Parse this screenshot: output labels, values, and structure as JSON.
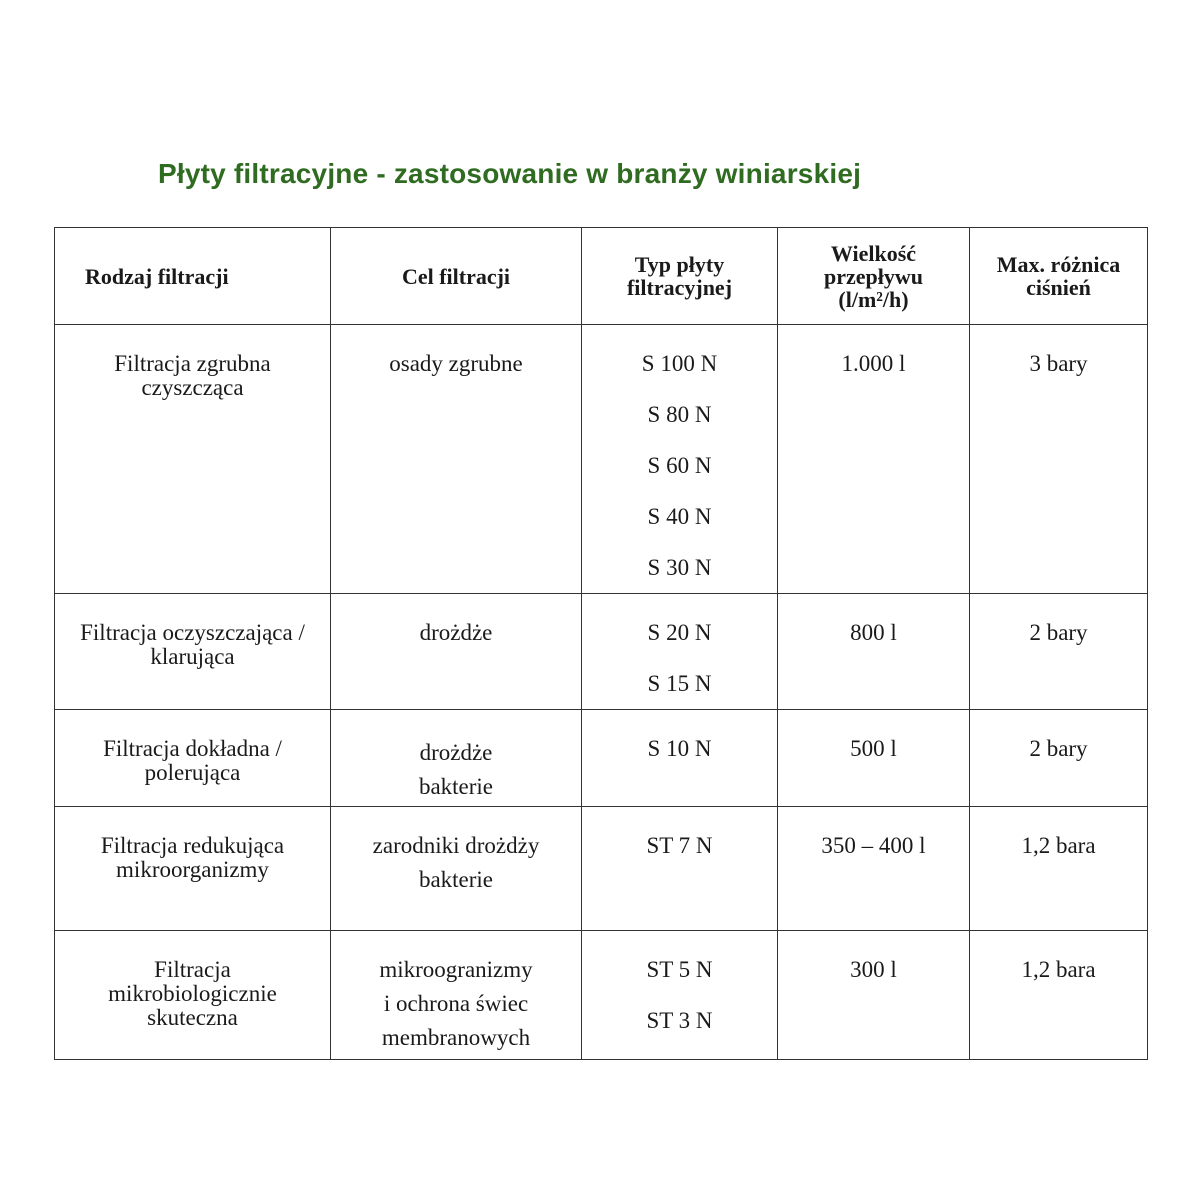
{
  "title": "Płyty filtracyjne - zastosowanie w branży winiarskiej",
  "colors": {
    "title": "#2f6b20",
    "border": "#333333",
    "text": "#1a1a1a"
  },
  "table": {
    "headers": [
      [
        "Rodzaj filtracji"
      ],
      [
        "Cel filtracji"
      ],
      [
        "Typ płyty",
        "filtracyjnej"
      ],
      [
        "Wielkość",
        "przepływu",
        "(l/m²/h)"
      ],
      [
        "Max. różnica",
        "ciśnień"
      ]
    ],
    "rows": [
      {
        "rodzaj": [
          "Filtracja zgrubna",
          "czyszcząca"
        ],
        "cel": [
          "osady zgrubne"
        ],
        "typ": [
          "S 100 N",
          "S 80 N",
          "S 60 N",
          "S 40 N",
          "S 30 N"
        ],
        "przeplyw": [
          "1.000 l"
        ],
        "cisnienie": [
          "3 bary"
        ]
      },
      {
        "rodzaj": [
          "Filtracja oczyszczająca /",
          "klarująca"
        ],
        "cel": [
          "drożdże"
        ],
        "typ": [
          "S 20 N",
          "S 15 N"
        ],
        "przeplyw": [
          "800 l"
        ],
        "cisnienie": [
          "2 bary"
        ]
      },
      {
        "rodzaj": [
          "Filtracja dokładna /",
          "polerująca"
        ],
        "cel": [
          "drożdże",
          "bakterie"
        ],
        "typ": [
          "S 10 N"
        ],
        "przeplyw": [
          "500 l"
        ],
        "cisnienie": [
          "2 bary"
        ]
      },
      {
        "rodzaj": [
          "Filtracja redukująca",
          "mikroorganizmy"
        ],
        "cel": [
          "zarodniki drożdży",
          "bakterie"
        ],
        "typ": [
          "ST 7 N"
        ],
        "przeplyw": [
          "350 – 400 l"
        ],
        "cisnienie": [
          "1,2 bara"
        ]
      },
      {
        "rodzaj": [
          "Filtracja",
          "mikrobiologicznie",
          "skuteczna"
        ],
        "cel": [
          "mikroogranizmy",
          "i ochrona świec",
          "membranowych"
        ],
        "typ": [
          "ST 5 N",
          "ST 3 N"
        ],
        "przeplyw": [
          "300 l"
        ],
        "cisnienie": [
          "1,2 bara"
        ]
      }
    ]
  }
}
